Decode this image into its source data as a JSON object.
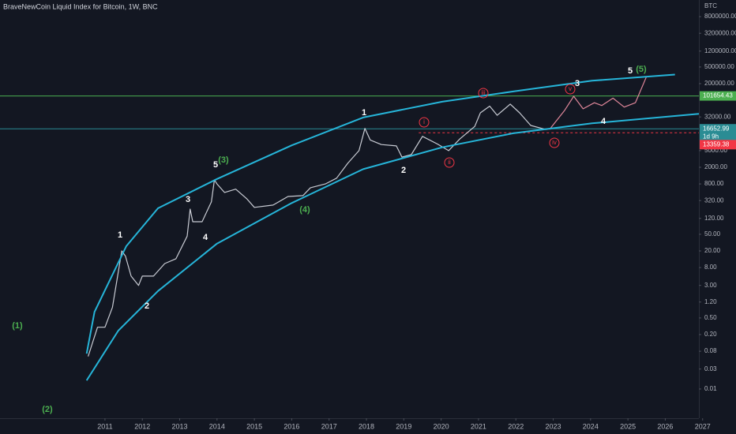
{
  "chart_data": {
    "type": "line",
    "title": "BraveNewCoin Liquid Index for Bitcoin, 1W, BNC",
    "y_label": "BTC",
    "log_y": true,
    "grid": false,
    "xlim": [
      2008.19,
      2026.9
    ],
    "ylim": [
      0.002,
      20000000
    ],
    "xticks": [
      2011,
      2012,
      2013,
      2014,
      2015,
      2016,
      2017,
      2018,
      2019,
      2020,
      2021,
      2022,
      2023,
      2024,
      2025,
      2026,
      2027
    ],
    "yticks": [
      {
        "value": 8000000,
        "label": "8000000.00"
      },
      {
        "value": 3200000,
        "label": "3200000.00"
      },
      {
        "value": 1200000,
        "label": "1200000.00"
      },
      {
        "value": 500000,
        "label": "500000.00"
      },
      {
        "value": 200000,
        "label": "200000.00"
      },
      {
        "value": 32000,
        "label": "32000.00"
      },
      {
        "value": 5000,
        "label": "5000.00"
      },
      {
        "value": 2000,
        "label": "2000.00"
      },
      {
        "value": 800,
        "label": "800.00"
      },
      {
        "value": 320,
        "label": "320.00"
      },
      {
        "value": 120,
        "label": "120.00"
      },
      {
        "value": 50,
        "label": "50.00"
      },
      {
        "value": 20,
        "label": "20.00"
      },
      {
        "value": 8,
        "label": "8.00"
      },
      {
        "value": 3,
        "label": "3.00"
      },
      {
        "value": 1.2,
        "label": "1.20"
      },
      {
        "value": 0.5,
        "label": "0.50"
      },
      {
        "value": 0.2,
        "label": "0.20"
      },
      {
        "value": 0.08,
        "label": "0.08"
      },
      {
        "value": 0.03,
        "label": "0.03"
      },
      {
        "value": 0.01,
        "label": "0.01"
      }
    ],
    "series": [
      {
        "color": "#c9ccd4",
        "x": [
          2010.55,
          2010.8,
          2011.0,
          2011.2,
          2011.45,
          2011.55,
          2011.7,
          2011.9,
          2012.0,
          2012.3,
          2012.6,
          2012.9,
          2013.2,
          2013.28,
          2013.35,
          2013.6,
          2013.85,
          2013.93,
          2014.0,
          2014.2,
          2014.5,
          2014.8,
          2015.0,
          2015.5,
          2015.9,
          2016.3,
          2016.5,
          2016.9,
          2017.2,
          2017.5,
          2017.8,
          2017.96,
          2018.1,
          2018.4,
          2018.8,
          2018.95,
          2019.2,
          2019.5,
          2019.9,
          2020.2,
          2020.5,
          2020.9,
          2021.05,
          2021.3,
          2021.5,
          2021.85,
          2022.1,
          2022.4,
          2022.8,
          2022.9
        ],
        "values": [
          0.06,
          0.3,
          0.3,
          0.9,
          20,
          15,
          5,
          3,
          5,
          5,
          10,
          13,
          45,
          200,
          100,
          100,
          300,
          1000,
          800,
          500,
          600,
          350,
          220,
          250,
          400,
          420,
          650,
          800,
          1100,
          2500,
          5000,
          17000,
          9000,
          7000,
          6500,
          3500,
          4000,
          11000,
          7200,
          5000,
          9500,
          19000,
          40000,
          58000,
          35000,
          65000,
          40000,
          20000,
          16000,
          16652.99
        ]
      },
      {
        "color": "#e0879a",
        "x": [
          2022.9,
          2023.3,
          2023.55,
          2023.8,
          2024.1,
          2024.3,
          2024.6,
          2024.9,
          2025.2,
          2025.5
        ],
        "values": [
          16000,
          45000,
          100000,
          50000,
          70000,
          60000,
          90000,
          55000,
          70000,
          300000
        ]
      },
      {
        "color": "#26b5d9",
        "x": [
          2010.51,
          2010.72,
          2011.57,
          2012.42,
          2014.0,
          2016.0,
          2017.91,
          2020.03,
          2021.93,
          2024.04,
          2026.26
        ],
        "values": [
          0.07,
          0.7,
          26,
          210,
          1050,
          6700,
          31000,
          74000,
          130000,
          235000,
          330000
        ]
      },
      {
        "color": "#26b5d9",
        "x": [
          2010.51,
          2011.36,
          2012.42,
          2014.0,
          2016.0,
          2017.91,
          2020.03,
          2021.93,
          2024.04,
          2026.9
        ],
        "values": [
          0.016,
          0.25,
          2.2,
          30,
          280,
          1800,
          6000,
          13000,
          22500,
          38000
        ]
      }
    ],
    "hlines": [
      {
        "value": 101654.43,
        "color": "#4caf50",
        "dash": false
      },
      {
        "value": 16652.99,
        "color": "#2a8c94",
        "dash": false
      },
      {
        "value": 13359.38,
        "color": "#f23645",
        "dash": true
      }
    ],
    "countdown": "1d 9h",
    "annotations": [
      {
        "text": "(1)",
        "color": "#4caf50"
      },
      {
        "text": "(2)",
        "color": "#4caf50"
      },
      {
        "text": "1",
        "color": "#ffffff"
      },
      {
        "text": "2",
        "color": "#ffffff"
      },
      {
        "text": "3",
        "color": "#ffffff"
      },
      {
        "text": "4",
        "color": "#ffffff"
      },
      {
        "text": "5",
        "color": "#ffffff"
      },
      {
        "text": "(3)",
        "color": "#4caf50"
      },
      {
        "text": "(4)",
        "color": "#4caf50"
      },
      {
        "text": "1",
        "color": "#ffffff"
      },
      {
        "text": "2",
        "color": "#ffffff"
      },
      {
        "text": "i",
        "color": "#f23645",
        "circled": true
      },
      {
        "text": "ii",
        "color": "#f23645",
        "circled": true
      },
      {
        "text": "iii",
        "color": "#f23645",
        "circled": true
      },
      {
        "text": "iv",
        "color": "#f23645",
        "circled": true
      },
      {
        "text": "v",
        "color": "#f23645",
        "circled": true
      },
      {
        "text": "3",
        "color": "#ffffff"
      },
      {
        "text": "4",
        "color": "#ffffff"
      },
      {
        "text": "5",
        "color": "#ffffff"
      },
      {
        "text": "(5)",
        "color": "#4caf50"
      }
    ]
  }
}
